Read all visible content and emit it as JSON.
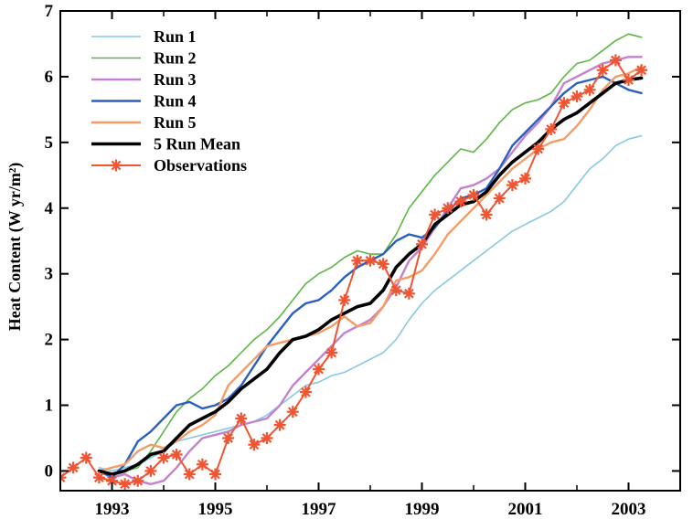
{
  "chart_data": {
    "type": "line",
    "title": "",
    "xlabel": "",
    "ylabel": "Heat Content (W yr/m²)",
    "xlim": [
      1992.0,
      2004.0
    ],
    "ylim": [
      -0.3,
      7.0
    ],
    "x_ticks": [
      1993,
      1995,
      1997,
      1999,
      2001,
      2003
    ],
    "y_ticks": [
      0,
      1,
      2,
      3,
      4,
      5,
      6,
      7
    ],
    "grid": false,
    "legend_position": "top-left",
    "series": [
      {
        "name": "Run 1",
        "color": "#86c8e6",
        "width": 1.6,
        "marker": "none",
        "x": [
          1992.75,
          1993.0,
          1993.25,
          1993.5,
          1993.75,
          1994.0,
          1994.25,
          1994.5,
          1994.75,
          1995.0,
          1995.25,
          1995.5,
          1995.75,
          1996.0,
          1996.25,
          1996.5,
          1996.75,
          1997.0,
          1997.25,
          1997.5,
          1997.75,
          1998.0,
          1998.25,
          1998.5,
          1998.75,
          1999.0,
          1999.25,
          1999.5,
          1999.75,
          2000.0,
          2000.25,
          2000.5,
          2000.75,
          2001.0,
          2001.25,
          2001.5,
          2001.75,
          2002.0,
          2002.25,
          2002.5,
          2002.75,
          2003.0,
          2003.25
        ],
        "y": [
          0.05,
          0.0,
          0.05,
          0.1,
          0.2,
          0.3,
          0.45,
          0.5,
          0.55,
          0.6,
          0.65,
          0.7,
          0.75,
          0.85,
          1.0,
          1.15,
          1.3,
          1.35,
          1.45,
          1.5,
          1.6,
          1.7,
          1.8,
          2.0,
          2.3,
          2.55,
          2.75,
          2.9,
          3.05,
          3.2,
          3.35,
          3.5,
          3.65,
          3.75,
          3.85,
          3.95,
          4.1,
          4.35,
          4.6,
          4.75,
          4.95,
          5.05,
          5.1
        ]
      },
      {
        "name": "Run 2",
        "color": "#5cb645",
        "width": 1.6,
        "marker": "none",
        "x": [
          1992.75,
          1993.0,
          1993.25,
          1993.5,
          1993.75,
          1994.0,
          1994.25,
          1994.5,
          1994.75,
          1995.0,
          1995.25,
          1995.5,
          1995.75,
          1996.0,
          1996.25,
          1996.5,
          1996.75,
          1997.0,
          1997.25,
          1997.5,
          1997.75,
          1998.0,
          1998.25,
          1998.5,
          1998.75,
          1999.0,
          1999.25,
          1999.5,
          1999.75,
          2000.0,
          2000.25,
          2000.5,
          2000.75,
          2001.0,
          2001.25,
          2001.5,
          2001.75,
          2002.0,
          2002.25,
          2002.5,
          2002.75,
          2003.0,
          2003.25
        ],
        "y": [
          0.0,
          -0.05,
          0.0,
          0.05,
          0.3,
          0.6,
          0.9,
          1.1,
          1.25,
          1.45,
          1.6,
          1.8,
          2.0,
          2.15,
          2.35,
          2.6,
          2.85,
          3.0,
          3.1,
          3.25,
          3.35,
          3.3,
          3.3,
          3.6,
          4.0,
          4.25,
          4.5,
          4.7,
          4.9,
          4.85,
          5.05,
          5.3,
          5.5,
          5.6,
          5.65,
          5.75,
          6.0,
          6.2,
          6.25,
          6.4,
          6.55,
          6.65,
          6.6
        ]
      },
      {
        "name": "Run 3",
        "color": "#c481cd",
        "width": 2.4,
        "marker": "none",
        "x": [
          1992.75,
          1993.0,
          1993.25,
          1993.5,
          1993.75,
          1994.0,
          1994.25,
          1994.5,
          1994.75,
          1995.0,
          1995.25,
          1995.5,
          1995.75,
          1996.0,
          1996.25,
          1996.5,
          1996.75,
          1997.0,
          1997.25,
          1997.5,
          1997.75,
          1998.0,
          1998.25,
          1998.5,
          1998.75,
          1999.0,
          1999.25,
          1999.5,
          1999.75,
          2000.0,
          2000.25,
          2000.5,
          2000.75,
          2001.0,
          2001.25,
          2001.5,
          2001.75,
          2002.0,
          2002.25,
          2002.5,
          2002.75,
          2003.0,
          2003.25
        ],
        "y": [
          0.0,
          -0.1,
          -0.05,
          -0.15,
          -0.2,
          -0.15,
          0.05,
          0.3,
          0.5,
          0.55,
          0.6,
          0.7,
          0.75,
          0.8,
          1.0,
          1.3,
          1.5,
          1.7,
          1.9,
          2.1,
          2.2,
          2.3,
          2.5,
          2.8,
          3.2,
          3.4,
          3.7,
          4.0,
          4.3,
          4.35,
          4.45,
          4.6,
          4.85,
          5.1,
          5.3,
          5.55,
          5.9,
          6.0,
          6.1,
          6.2,
          6.25,
          6.3,
          6.3
        ]
      },
      {
        "name": "Run 4",
        "color": "#2a5fbe",
        "width": 2.4,
        "marker": "none",
        "x": [
          1992.75,
          1993.0,
          1993.25,
          1993.5,
          1993.75,
          1994.0,
          1994.25,
          1994.5,
          1994.75,
          1995.0,
          1995.25,
          1995.5,
          1995.75,
          1996.0,
          1996.25,
          1996.5,
          1996.75,
          1997.0,
          1997.25,
          1997.5,
          1997.75,
          1998.0,
          1998.25,
          1998.5,
          1998.75,
          1999.0,
          1999.25,
          1999.5,
          1999.75,
          2000.0,
          2000.25,
          2000.5,
          2000.75,
          2001.0,
          2001.25,
          2001.5,
          2001.75,
          2002.0,
          2002.25,
          2002.5,
          2002.75,
          2003.0,
          2003.25
        ],
        "y": [
          0.0,
          -0.1,
          0.1,
          0.45,
          0.6,
          0.8,
          1.0,
          1.05,
          0.95,
          1.0,
          1.1,
          1.3,
          1.6,
          1.9,
          2.15,
          2.4,
          2.55,
          2.6,
          2.75,
          2.95,
          3.1,
          3.2,
          3.3,
          3.5,
          3.6,
          3.55,
          3.7,
          3.95,
          4.15,
          4.2,
          4.3,
          4.6,
          4.95,
          5.15,
          5.35,
          5.55,
          5.75,
          5.9,
          5.95,
          6.0,
          5.9,
          5.8,
          5.75
        ]
      },
      {
        "name": "Run 5",
        "color": "#f59c66",
        "width": 2.4,
        "marker": "none",
        "x": [
          1992.75,
          1993.0,
          1993.25,
          1993.5,
          1993.75,
          1994.0,
          1994.25,
          1994.5,
          1994.75,
          1995.0,
          1995.25,
          1995.5,
          1995.75,
          1996.0,
          1996.25,
          1996.5,
          1996.75,
          1997.0,
          1997.25,
          1997.5,
          1997.75,
          1998.0,
          1998.25,
          1998.5,
          1998.75,
          1999.0,
          1999.25,
          1999.5,
          1999.75,
          2000.0,
          2000.25,
          2000.5,
          2000.75,
          2001.0,
          2001.25,
          2001.5,
          2001.75,
          2002.0,
          2002.25,
          2002.5,
          2002.75,
          2003.0,
          2003.25
        ],
        "y": [
          0.0,
          0.05,
          0.1,
          0.3,
          0.4,
          0.35,
          0.45,
          0.6,
          0.7,
          0.85,
          1.3,
          1.5,
          1.7,
          1.9,
          1.95,
          2.0,
          2.05,
          2.1,
          2.2,
          2.35,
          2.2,
          2.25,
          2.5,
          2.9,
          2.95,
          3.05,
          3.3,
          3.6,
          3.8,
          4.0,
          4.2,
          4.4,
          4.6,
          4.75,
          4.9,
          5.0,
          5.05,
          5.25,
          5.5,
          5.8,
          6.0,
          6.05,
          6.15
        ]
      },
      {
        "name": "5 Run Mean",
        "color": "#000000",
        "width": 3.6,
        "marker": "none",
        "x": [
          1992.75,
          1993.0,
          1993.25,
          1993.5,
          1993.75,
          1994.0,
          1994.25,
          1994.5,
          1994.75,
          1995.0,
          1995.25,
          1995.5,
          1995.75,
          1996.0,
          1996.25,
          1996.5,
          1996.75,
          1997.0,
          1997.25,
          1997.5,
          1997.75,
          1998.0,
          1998.25,
          1998.5,
          1998.75,
          1999.0,
          1999.25,
          1999.5,
          1999.75,
          2000.0,
          2000.25,
          2000.5,
          2000.75,
          2001.0,
          2001.25,
          2001.5,
          2001.75,
          2002.0,
          2002.25,
          2002.5,
          2002.75,
          2003.0,
          2003.25
        ],
        "y": [
          0.0,
          -0.05,
          0.0,
          0.1,
          0.25,
          0.3,
          0.5,
          0.7,
          0.8,
          0.9,
          1.05,
          1.25,
          1.4,
          1.55,
          1.8,
          2.0,
          2.05,
          2.15,
          2.3,
          2.4,
          2.5,
          2.55,
          2.75,
          3.1,
          3.3,
          3.45,
          3.75,
          3.9,
          4.05,
          4.1,
          4.25,
          4.5,
          4.7,
          4.85,
          5.0,
          5.2,
          5.35,
          5.45,
          5.6,
          5.75,
          5.9,
          5.95,
          5.98
        ]
      },
      {
        "name": "Observations",
        "color": "#ef5533",
        "width": 2.0,
        "marker": "asterisk",
        "x": [
          1992.0,
          1992.25,
          1992.5,
          1992.75,
          1993.0,
          1993.25,
          1993.5,
          1993.75,
          1994.0,
          1994.25,
          1994.5,
          1994.75,
          1995.0,
          1995.25,
          1995.5,
          1995.75,
          1996.0,
          1996.25,
          1996.5,
          1996.75,
          1997.0,
          1997.25,
          1997.5,
          1997.75,
          1998.0,
          1998.25,
          1998.5,
          1998.75,
          1999.0,
          1999.25,
          1999.5,
          1999.75,
          2000.0,
          2000.25,
          2000.5,
          2000.75,
          2001.0,
          2001.25,
          2001.5,
          2001.75,
          2002.0,
          2002.25,
          2002.5,
          2002.75,
          2003.0,
          2003.25
        ],
        "y": [
          -0.1,
          0.05,
          0.2,
          -0.1,
          -0.15,
          -0.2,
          -0.15,
          0.0,
          0.2,
          0.25,
          -0.05,
          0.1,
          -0.05,
          0.5,
          0.8,
          0.4,
          0.5,
          0.7,
          0.9,
          1.2,
          1.55,
          1.8,
          2.6,
          3.2,
          3.2,
          3.15,
          2.75,
          2.7,
          3.45,
          3.9,
          4.0,
          4.1,
          4.2,
          3.9,
          4.15,
          4.35,
          4.45,
          4.9,
          5.2,
          5.6,
          5.7,
          5.8,
          6.1,
          6.25,
          5.95,
          6.1
        ]
      }
    ]
  }
}
